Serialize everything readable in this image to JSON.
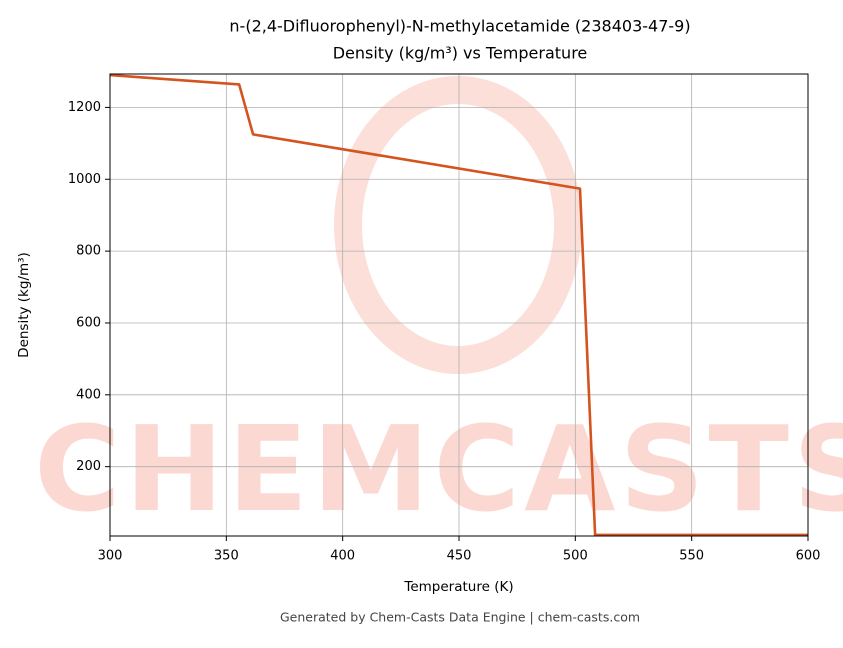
{
  "chart_data": {
    "type": "line",
    "title": "n-(2,4-Difluorophenyl)-N-methylacetamide (238403-47-9)",
    "subtitle": "Density (kg/m³) vs Temperature",
    "x_label": "Temperature (K)",
    "y_label": "Density (kg/m³)",
    "watermark": "CHEMCASTS",
    "footer": "Generated by Chem-Casts Data Engine | chem-casts.com",
    "x": [
      300,
      355.5,
      361.5,
      502,
      508.5,
      600
    ],
    "series": [
      {
        "name": "Density",
        "color": "#d4541f",
        "values": [
          1290,
          1264,
          1125,
          974,
          10,
          10
        ]
      }
    ],
    "xlim": [
      300,
      600
    ],
    "xticks": [
      300,
      350,
      400,
      450,
      500,
      550,
      600
    ],
    "ylim": [
      7,
      1293
    ],
    "yticks": [
      200,
      400,
      600,
      800,
      1000,
      1200
    ],
    "grid": true
  }
}
